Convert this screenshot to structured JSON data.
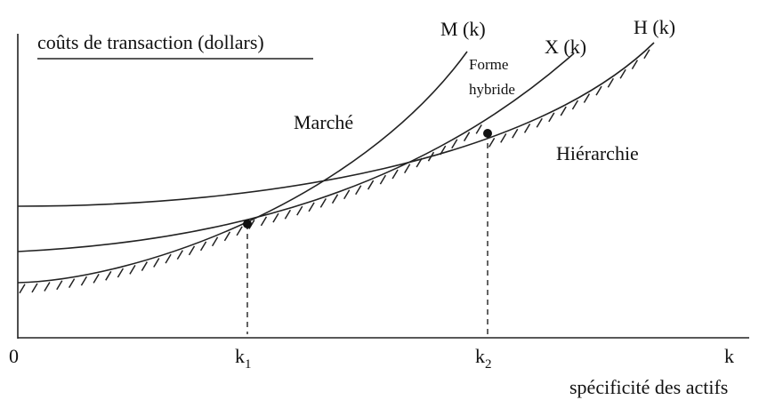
{
  "y_axis_label": "coûts de transaction (dollars)",
  "x_axis_label": "spécificité des actifs",
  "origin": "0",
  "x_axis_end": "k",
  "points": [
    {
      "label": "k",
      "sub": "1"
    },
    {
      "label": "k",
      "sub": "2"
    }
  ],
  "curves": [
    {
      "label": "M (k)"
    },
    {
      "label": "X (k)"
    },
    {
      "label": "H (k)"
    }
  ],
  "regions": {
    "market": "Marché",
    "hybrid_1": "Forme",
    "hybrid_2": "hybride",
    "hierarchy": "Hiérarchie"
  }
}
